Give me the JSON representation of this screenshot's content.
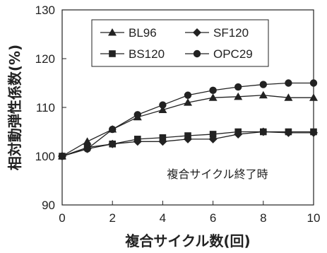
{
  "chart_data": {
    "type": "line",
    "title": "",
    "xlabel": "複合サイクル数(回)",
    "ylabel": "相対動弾性係数(%)",
    "annotation": "複合サイクル終了時",
    "xlim": [
      0,
      10
    ],
    "ylim": [
      90,
      130
    ],
    "xticks": [
      0,
      2,
      4,
      6,
      8,
      10
    ],
    "yticks": [
      90,
      100,
      110,
      120,
      130
    ],
    "grid": false,
    "legend_placement": "top-left",
    "x": [
      0,
      1,
      2,
      3,
      4,
      5,
      6,
      7,
      8,
      9,
      10
    ],
    "series": [
      {
        "name": "BL96",
        "marker": "triangle",
        "values": [
          100,
          103,
          105.5,
          108,
          109.5,
          111,
          112,
          112.2,
          112.5,
          112,
          112
        ]
      },
      {
        "name": "SF120",
        "marker": "diamond",
        "values": [
          100,
          101.5,
          102.5,
          103,
          103,
          103.5,
          103.5,
          104.5,
          105,
          104.8,
          104.8
        ]
      },
      {
        "name": "BS120",
        "marker": "square",
        "values": [
          100,
          101.8,
          102.5,
          103.5,
          103.8,
          104.2,
          104.5,
          105,
          105,
          105,
          105
        ]
      },
      {
        "name": "OPC29",
        "marker": "circle",
        "values": [
          100,
          101.5,
          105.5,
          108.5,
          110.5,
          112.5,
          113.5,
          114.2,
          114.7,
          115,
          115
        ]
      }
    ]
  }
}
